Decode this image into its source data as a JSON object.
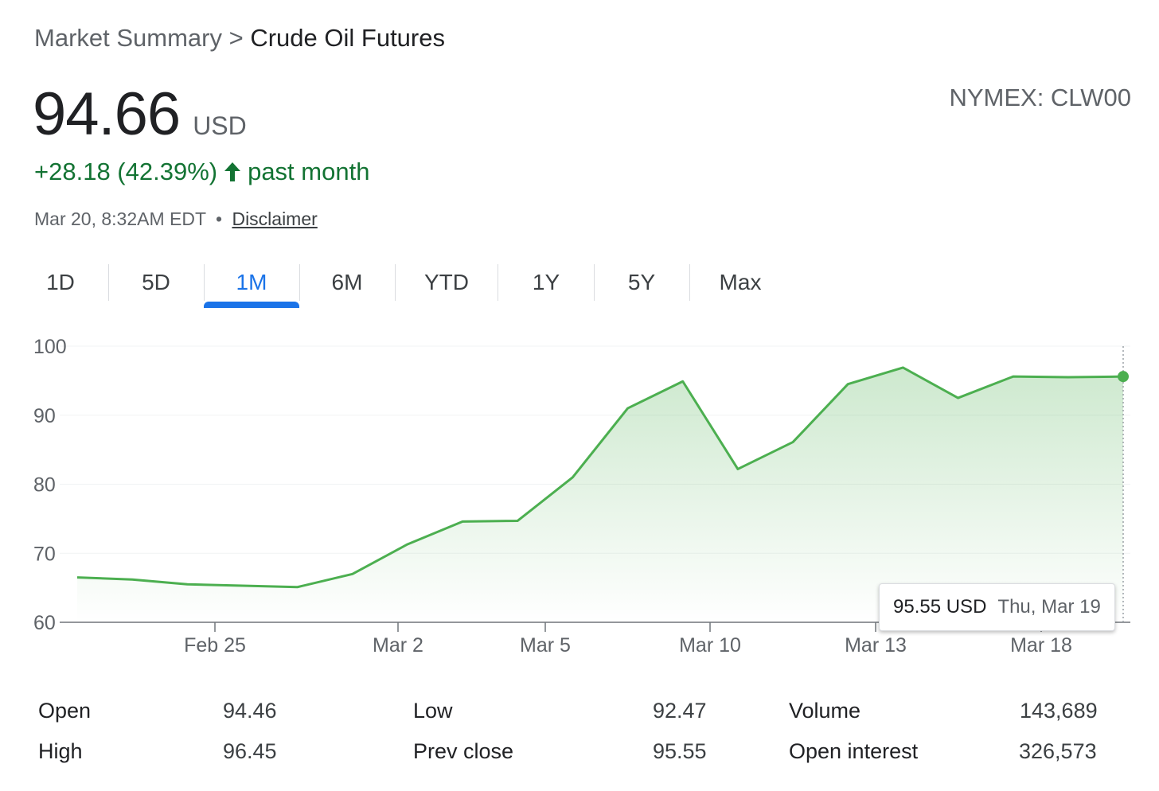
{
  "breadcrumb": {
    "parent": "Market Summary",
    "separator": ">",
    "current": "Crude Oil Futures"
  },
  "quote": {
    "price": "94.66",
    "currency": "USD",
    "exchange": "NYMEX: CLW00",
    "change_text": "+28.18 (42.39%)",
    "change_period": "past month",
    "change_direction_icon": "arrow-up-icon",
    "timestamp": "Mar 20, 8:32AM EDT",
    "separator": "•",
    "disclaimer": "Disclaimer"
  },
  "tabs": [
    {
      "label": "1D"
    },
    {
      "label": "5D"
    },
    {
      "label": "1M"
    },
    {
      "label": "6M"
    },
    {
      "label": "YTD"
    },
    {
      "label": "1Y"
    },
    {
      "label": "5Y"
    },
    {
      "label": "Max"
    }
  ],
  "active_tab": "1M",
  "colors": {
    "line": "#4caf50",
    "positive": "#137333",
    "accent": "#1a73e8"
  },
  "tooltip": {
    "price": "95.55 USD",
    "date": "Thu, Mar 19"
  },
  "chart_data": {
    "type": "area",
    "series": [
      {
        "values": [
          66.5,
          66.2,
          65.5,
          65.3,
          65.1,
          67.0,
          71.3,
          74.6,
          74.7,
          81.0,
          91.0,
          94.9,
          82.2,
          86.1,
          94.5,
          96.9,
          92.5,
          95.6,
          95.5,
          95.6
        ]
      }
    ],
    "x_tick_labels": [
      "Feb 25",
      "Mar 2",
      "Mar 5",
      "Mar 10",
      "Mar 13",
      "Mar 18"
    ],
    "y_ticks": [
      100,
      90,
      80,
      70,
      60
    ],
    "ylim": [
      60,
      100
    ],
    "grid": true
  },
  "stats": [
    {
      "label": "Open",
      "value": "94.46"
    },
    {
      "label": "High",
      "value": "96.45"
    },
    {
      "label": "Low",
      "value": "92.47"
    },
    {
      "label": "Prev close",
      "value": "95.55"
    },
    {
      "label": "Volume",
      "value": "143,689"
    },
    {
      "label": "Open interest",
      "value": "326,573"
    }
  ]
}
